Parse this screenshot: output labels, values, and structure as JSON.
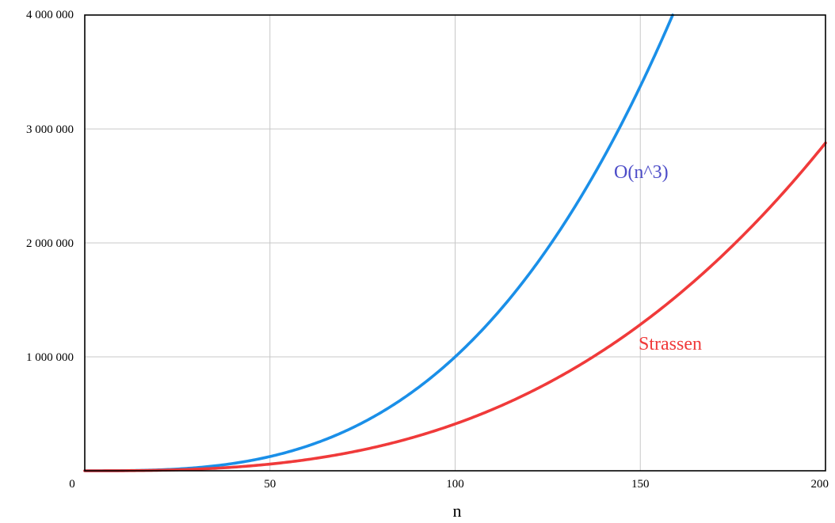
{
  "chart_data": {
    "type": "line",
    "title": "",
    "xlabel": "n",
    "ylabel": "",
    "xlim": [
      0,
      200
    ],
    "ylim": [
      0,
      4000000
    ],
    "x_ticks": [
      0,
      50,
      100,
      150,
      200
    ],
    "x_tick_labels": [
      "0",
      "50",
      "100",
      "150",
      "200"
    ],
    "y_ticks": [
      1000000,
      2000000,
      3000000,
      4000000
    ],
    "y_tick_labels": [
      "1 000 000",
      "2 000 000",
      "3 000 000",
      "4 000 000"
    ],
    "grid": true,
    "series": [
      {
        "name": "O(n^3)",
        "color": "#1a8fe8",
        "label_color": "#4c4cc8",
        "formula": "n^3",
        "x": [
          0,
          20,
          40,
          60,
          80,
          100,
          120,
          140,
          150,
          158.7
        ],
        "values": [
          0,
          8000,
          64000,
          216000,
          512000,
          1000000,
          1728000,
          2744000,
          3375000,
          4000000
        ]
      },
      {
        "name": "Strassen",
        "color": "#f03a3a",
        "label_color": "#f03a3a",
        "formula": "n^2.807",
        "x": [
          0,
          20,
          40,
          60,
          80,
          100,
          120,
          140,
          160,
          180,
          200
        ],
        "values": [
          0,
          4530,
          31700,
          97000,
          218000,
          410000,
          683000,
          1054000,
          1525000,
          2117000,
          2857000
        ]
      }
    ]
  }
}
